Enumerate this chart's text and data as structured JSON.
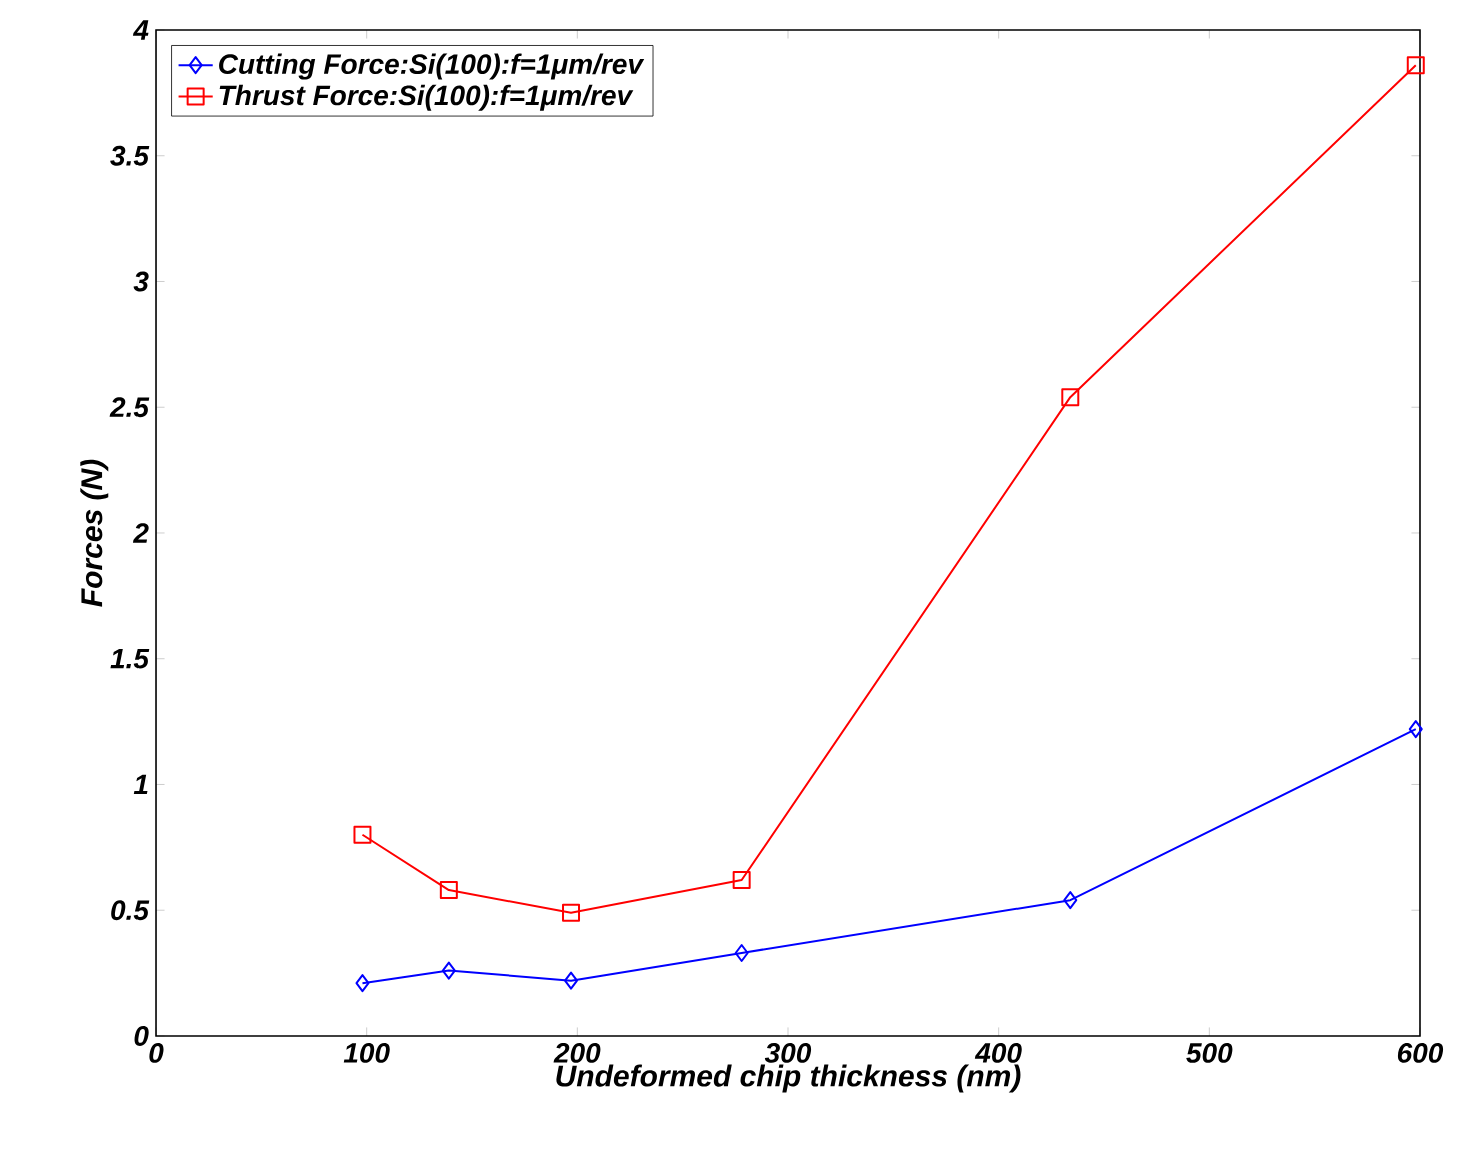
{
  "chart_data": {
    "type": "line",
    "xlabel": "Undeformed chip thickness (nm)",
    "ylabel": "Forces (N)",
    "xlim": [
      0,
      600
    ],
    "ylim": [
      0,
      4
    ],
    "xticks": [
      0,
      100,
      200,
      300,
      400,
      500,
      600
    ],
    "yticks": [
      0,
      0.5,
      1,
      1.5,
      2,
      2.5,
      3,
      3.5,
      4
    ],
    "grid": false,
    "legend": "top left",
    "line_style": "solid",
    "series": [
      {
        "name": "Cutting Force:Si(100):f=1μm/rev",
        "color": "#0000ff",
        "marker": "diamond",
        "x": [
          98,
          139,
          197,
          278,
          434,
          598
        ],
        "values": [
          0.21,
          0.26,
          0.22,
          0.33,
          0.54,
          1.22
        ]
      },
      {
        "name": "Thrust Force:Si(100):f=1μm/rev",
        "color": "#ff0000",
        "marker": "square",
        "x": [
          98,
          139,
          197,
          278,
          434,
          598
        ],
        "values": [
          0.8,
          0.58,
          0.49,
          0.62,
          2.54,
          3.86
        ]
      }
    ]
  }
}
